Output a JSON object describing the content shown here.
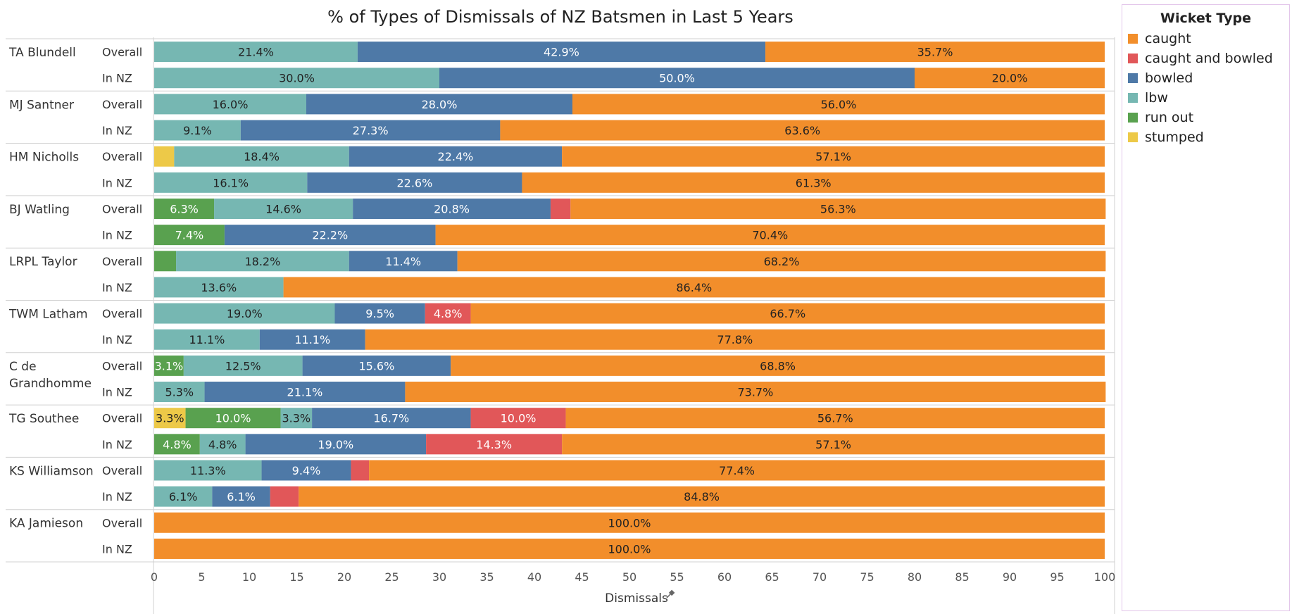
{
  "chart_data": {
    "type": "bar",
    "orientation": "horizontal",
    "stacked": true,
    "title": "% of Types of Dismissals of NZ Batsmen in Last 5 Years",
    "xlabel": "Dismissals",
    "xlim": [
      0,
      100
    ],
    "xticks": [
      0,
      5,
      10,
      15,
      20,
      25,
      30,
      35,
      40,
      45,
      50,
      55,
      60,
      65,
      70,
      75,
      80,
      85,
      90,
      95,
      100
    ],
    "legend_title": "Wicket Type",
    "legend_position": "right",
    "segment_order": [
      "stumped",
      "run out",
      "lbw",
      "bowled",
      "caught and bowled",
      "caught"
    ],
    "series": [
      {
        "name": "caught",
        "color": "#f28e2b"
      },
      {
        "name": "caught and bowled",
        "color": "#e15759"
      },
      {
        "name": "bowled",
        "color": "#4e79a7"
      },
      {
        "name": "lbw",
        "color": "#76b7b2"
      },
      {
        "name": "run out",
        "color": "#59a14f"
      },
      {
        "name": "stumped",
        "color": "#edc948"
      }
    ],
    "batsmen": [
      {
        "name": "TA Blundell",
        "rows": [
          {
            "label": "Overall",
            "values": {
              "lbw": 21.4,
              "bowled": 42.9,
              "caught": 35.7
            },
            "labels": {
              "lbw": "21.4%",
              "bowled": "42.9%",
              "caught": "35.7%"
            }
          },
          {
            "label": "In NZ",
            "values": {
              "lbw": 30.0,
              "bowled": 50.0,
              "caught": 20.0
            },
            "labels": {
              "lbw": "30.0%",
              "bowled": "50.0%",
              "caught": "20.0%"
            }
          }
        ]
      },
      {
        "name": "MJ Santner",
        "rows": [
          {
            "label": "Overall",
            "values": {
              "lbw": 16.0,
              "bowled": 28.0,
              "caught": 56.0
            },
            "labels": {
              "lbw": "16.0%",
              "bowled": "28.0%",
              "caught": "56.0%"
            }
          },
          {
            "label": "In NZ",
            "values": {
              "lbw": 9.1,
              "bowled": 27.3,
              "caught": 63.6
            },
            "labels": {
              "lbw": "9.1%",
              "bowled": "27.3%",
              "caught": "63.6%"
            }
          }
        ]
      },
      {
        "name": "HM Nicholls",
        "rows": [
          {
            "label": "Overall",
            "values": {
              "stumped": 2.1,
              "lbw": 18.4,
              "bowled": 22.4,
              "caught": 57.1
            },
            "labels": {
              "lbw": "18.4%",
              "bowled": "22.4%",
              "caught": "57.1%"
            }
          },
          {
            "label": "In NZ",
            "values": {
              "lbw": 16.1,
              "bowled": 22.6,
              "caught": 61.3
            },
            "labels": {
              "lbw": "16.1%",
              "bowled": "22.6%",
              "caught": "61.3%"
            }
          }
        ]
      },
      {
        "name": "BJ Watling",
        "rows": [
          {
            "label": "Overall",
            "values": {
              "run out": 6.3,
              "lbw": 14.6,
              "bowled": 20.8,
              "caught and bowled": 2.1,
              "caught": 56.3
            },
            "labels": {
              "run out": "6.3%",
              "lbw": "14.6%",
              "bowled": "20.8%",
              "caught": "56.3%"
            }
          },
          {
            "label": "In NZ",
            "values": {
              "run out": 7.4,
              "bowled": 22.2,
              "caught": 70.4
            },
            "labels": {
              "run out": "7.4%",
              "bowled": "22.2%",
              "caught": "70.4%"
            }
          }
        ]
      },
      {
        "name": "LRPL Taylor",
        "rows": [
          {
            "label": "Overall",
            "values": {
              "run out": 2.3,
              "lbw": 18.2,
              "bowled": 11.4,
              "caught": 68.2
            },
            "labels": {
              "lbw": "18.2%",
              "bowled": "11.4%",
              "caught": "68.2%"
            }
          },
          {
            "label": "In NZ",
            "values": {
              "lbw": 13.6,
              "caught": 86.4
            },
            "labels": {
              "lbw": "13.6%",
              "caught": "86.4%"
            }
          }
        ]
      },
      {
        "name": "TWM Latham",
        "rows": [
          {
            "label": "Overall",
            "values": {
              "lbw": 19.0,
              "bowled": 9.5,
              "caught and bowled": 4.8,
              "caught": 66.7
            },
            "labels": {
              "lbw": "19.0%",
              "bowled": "9.5%",
              "caught and bowled": "4.8%",
              "caught": "66.7%"
            }
          },
          {
            "label": "In NZ",
            "values": {
              "lbw": 11.1,
              "bowled": 11.1,
              "caught": 77.8
            },
            "labels": {
              "lbw": "11.1%",
              "bowled": "11.1%",
              "caught": "77.8%"
            }
          }
        ]
      },
      {
        "name": "C de Grandhomme",
        "rows": [
          {
            "label": "Overall",
            "values": {
              "run out": 3.1,
              "lbw": 12.5,
              "bowled": 15.6,
              "caught": 68.8
            },
            "labels": {
              "run out": "3.1%",
              "lbw": "12.5%",
              "bowled": "15.6%",
              "caught": "68.8%"
            }
          },
          {
            "label": "In NZ",
            "values": {
              "lbw": 5.3,
              "bowled": 21.1,
              "caught": 73.7
            },
            "labels": {
              "lbw": "5.3%",
              "bowled": "21.1%",
              "caught": "73.7%"
            }
          }
        ]
      },
      {
        "name": "TG Southee",
        "rows": [
          {
            "label": "Overall",
            "values": {
              "stumped": 3.3,
              "run out": 10.0,
              "lbw": 3.3,
              "bowled": 16.7,
              "caught and bowled": 10.0,
              "caught": 56.7
            },
            "labels": {
              "stumped": "3.3%",
              "run out": "10.0%",
              "lbw": "3.3%",
              "bowled": "16.7%",
              "caught and bowled": "10.0%",
              "caught": "56.7%"
            }
          },
          {
            "label": "In NZ",
            "values": {
              "run out": 4.8,
              "lbw": 4.8,
              "bowled": 19.0,
              "caught and bowled": 14.3,
              "caught": 57.1
            },
            "labels": {
              "run out": "4.8%",
              "lbw": "4.8%",
              "bowled": "19.0%",
              "caught and bowled": "14.3%",
              "caught": "57.1%"
            }
          }
        ]
      },
      {
        "name": "KS Williamson",
        "rows": [
          {
            "label": "Overall",
            "values": {
              "lbw": 11.3,
              "bowled": 9.4,
              "caught and bowled": 1.9,
              "caught": 77.4
            },
            "labels": {
              "lbw": "11.3%",
              "bowled": "9.4%",
              "caught": "77.4%"
            }
          },
          {
            "label": "In NZ",
            "values": {
              "lbw": 6.1,
              "bowled": 6.1,
              "caught and bowled": 3.0,
              "caught": 84.8
            },
            "labels": {
              "lbw": "6.1%",
              "bowled": "6.1%",
              "caught": "84.8%"
            }
          }
        ]
      },
      {
        "name": "KA Jamieson",
        "rows": [
          {
            "label": "Overall",
            "values": {
              "caught": 100.0
            },
            "labels": {
              "caught": "100.0%"
            }
          },
          {
            "label": "In NZ",
            "values": {
              "caught": 100.0
            },
            "labels": {
              "caught": "100.0%"
            }
          }
        ]
      }
    ]
  }
}
